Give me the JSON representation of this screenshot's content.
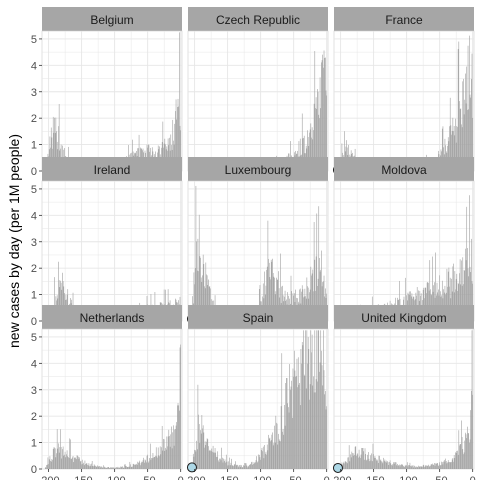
{
  "chart_data": {
    "type": "bar",
    "ylabel": "new cases by day (per 1M people)",
    "xlabel": "",
    "xlim": [
      -210,
      2
    ],
    "ylim": [
      0,
      5.3
    ],
    "x_ticks": [
      -200,
      -150,
      -100,
      -50,
      0
    ],
    "x_tick_labels": [
      "-200",
      "-150",
      "-100",
      "-50",
      "0"
    ],
    "y_ticks": [
      0,
      1,
      2,
      3,
      4,
      5
    ],
    "y_tick_labels": [
      "0",
      "1",
      "2",
      "3",
      "4",
      "5"
    ],
    "grid": true,
    "colors": {
      "bar": "#a3a3a3",
      "strip": "#a6a6a6",
      "marker_fill": "#add8e6",
      "marker_stroke": "#1a1a1a",
      "grid": "#e6e6e6"
    },
    "panels": [
      {
        "title": "Belgium",
        "shape": [
          [
            -205,
            0.1
          ],
          [
            -200,
            0.6
          ],
          [
            -196,
            1.4
          ],
          [
            -190,
            1.6
          ],
          [
            -186,
            1.3
          ],
          [
            -180,
            0.9
          ],
          [
            -172,
            0.45
          ],
          [
            -160,
            0.3
          ],
          [
            -145,
            0.2
          ],
          [
            -130,
            0.15
          ],
          [
            -115,
            0.12
          ],
          [
            -100,
            0.12
          ],
          [
            -90,
            0.25
          ],
          [
            -80,
            0.45
          ],
          [
            -70,
            0.6
          ],
          [
            -60,
            0.65
          ],
          [
            -50,
            0.75
          ],
          [
            -40,
            0.7
          ],
          [
            -30,
            0.8
          ],
          [
            -20,
            1.0
          ],
          [
            -12,
            1.5
          ],
          [
            -6,
            2.2
          ],
          [
            -2,
            2.7
          ],
          [
            0,
            2.8
          ]
        ],
        "marker": null
      },
      {
        "title": "Czech Republic",
        "shape": [
          [
            -195,
            0.05
          ],
          [
            -180,
            0.18
          ],
          [
            -160,
            0.22
          ],
          [
            -140,
            0.2
          ],
          [
            -120,
            0.2
          ],
          [
            -100,
            0.2
          ],
          [
            -85,
            0.22
          ],
          [
            -70,
            0.3
          ],
          [
            -60,
            0.45
          ],
          [
            -50,
            0.6
          ],
          [
            -40,
            0.9
          ],
          [
            -30,
            1.3
          ],
          [
            -22,
            1.8
          ],
          [
            -15,
            2.4
          ],
          [
            -8,
            3.1
          ],
          [
            -3,
            3.7
          ],
          [
            0,
            4.0
          ]
        ],
        "marker": null
      },
      {
        "title": "France",
        "shape": [
          [
            -205,
            0.0
          ],
          [
            -198,
            0.5
          ],
          [
            -190,
            0.9
          ],
          [
            -185,
            0.6
          ],
          [
            -178,
            0.4
          ],
          [
            -165,
            0.25
          ],
          [
            -150,
            0.2
          ],
          [
            -130,
            0.15
          ],
          [
            -110,
            0.15
          ],
          [
            -90,
            0.2
          ],
          [
            -75,
            0.25
          ],
          [
            -62,
            0.35
          ],
          [
            -50,
            0.6
          ],
          [
            -40,
            1.0
          ],
          [
            -30,
            1.5
          ],
          [
            -22,
            2.2
          ],
          [
            -15,
            2.8
          ],
          [
            -9,
            3.5
          ],
          [
            -5,
            4.0
          ],
          [
            -1,
            3.8
          ],
          [
            0,
            3.5
          ]
        ],
        "marker": {
          "x": -204,
          "y": 0.04
        }
      },
      {
        "title": "Ireland",
        "shape": [
          [
            -200,
            0.05
          ],
          [
            -195,
            0.3
          ],
          [
            -190,
            0.9
          ],
          [
            -185,
            1.7
          ],
          [
            -180,
            1.6
          ],
          [
            -174,
            1.1
          ],
          [
            -168,
            0.7
          ],
          [
            -160,
            0.4
          ],
          [
            -150,
            0.2
          ],
          [
            -135,
            0.08
          ],
          [
            -115,
            0.05
          ],
          [
            -95,
            0.05
          ],
          [
            -80,
            0.1
          ],
          [
            -70,
            0.2
          ],
          [
            -60,
            0.35
          ],
          [
            -50,
            0.45
          ],
          [
            -40,
            0.5
          ],
          [
            -30,
            0.55
          ],
          [
            -20,
            0.55
          ],
          [
            -10,
            0.6
          ],
          [
            -3,
            0.7
          ],
          [
            0,
            0.75
          ]
        ],
        "marker": null
      },
      {
        "title": "Luxembourg",
        "shape": [
          [
            -205,
            0.3
          ],
          [
            -200,
            1.6
          ],
          [
            -196,
            3.2
          ],
          [
            -193,
            3.3
          ],
          [
            -188,
            2.5
          ],
          [
            -182,
            1.5
          ],
          [
            -175,
            0.8
          ],
          [
            -168,
            0.4
          ],
          [
            -160,
            0.2
          ],
          [
            -145,
            0.08
          ],
          [
            -125,
            0.05
          ],
          [
            -112,
            0.1
          ],
          [
            -105,
            0.3
          ],
          [
            -98,
            0.9
          ],
          [
            -92,
            1.6
          ],
          [
            -86,
            1.9
          ],
          [
            -80,
            1.8
          ],
          [
            -72,
            1.3
          ],
          [
            -62,
            0.9
          ],
          [
            -55,
            0.8
          ],
          [
            -45,
            0.9
          ],
          [
            -35,
            1.1
          ],
          [
            -25,
            1.5
          ],
          [
            -16,
            1.9
          ],
          [
            -10,
            2.1
          ],
          [
            -5,
            1.7
          ],
          [
            0,
            1.4
          ]
        ],
        "marker": {
          "x": -204,
          "y": 0.08
        }
      },
      {
        "title": "Moldova",
        "shape": [
          [
            -185,
            0.05
          ],
          [
            -178,
            0.2
          ],
          [
            -165,
            0.35
          ],
          [
            -150,
            0.45
          ],
          [
            -135,
            0.55
          ],
          [
            -120,
            0.65
          ],
          [
            -105,
            0.75
          ],
          [
            -90,
            0.9
          ],
          [
            -75,
            1.0
          ],
          [
            -60,
            1.15
          ],
          [
            -45,
            1.35
          ],
          [
            -30,
            1.6
          ],
          [
            -18,
            1.85
          ],
          [
            -8,
            2.1
          ],
          [
            -3,
            2.3
          ],
          [
            0,
            2.35
          ]
        ],
        "marker": null
      },
      {
        "title": "Netherlands",
        "shape": [
          [
            -205,
            0.05
          ],
          [
            -200,
            0.25
          ],
          [
            -195,
            0.55
          ],
          [
            -188,
            0.7
          ],
          [
            -180,
            0.7
          ],
          [
            -172,
            0.6
          ],
          [
            -163,
            0.45
          ],
          [
            -150,
            0.3
          ],
          [
            -135,
            0.15
          ],
          [
            -120,
            0.07
          ],
          [
            -100,
            0.05
          ],
          [
            -85,
            0.08
          ],
          [
            -72,
            0.15
          ],
          [
            -60,
            0.25
          ],
          [
            -50,
            0.4
          ],
          [
            -40,
            0.55
          ],
          [
            -30,
            0.7
          ],
          [
            -22,
            0.95
          ],
          [
            -15,
            1.3
          ],
          [
            -8,
            1.7
          ],
          [
            -3,
            2.1
          ],
          [
            0,
            2.2
          ]
        ],
        "marker": null
      },
      {
        "title": "Spain",
        "shape": [
          [
            -205,
            0.0
          ],
          [
            -200,
            0.7
          ],
          [
            -195,
            1.5
          ],
          [
            -190,
            1.6
          ],
          [
            -184,
            1.2
          ],
          [
            -178,
            0.9
          ],
          [
            -170,
            0.6
          ],
          [
            -160,
            0.4
          ],
          [
            -150,
            0.22
          ],
          [
            -135,
            0.12
          ],
          [
            -120,
            0.1
          ],
          [
            -108,
            0.3
          ],
          [
            -98,
            0.6
          ],
          [
            -88,
            0.95
          ],
          [
            -78,
            1.4
          ],
          [
            -70,
            1.9
          ],
          [
            -62,
            2.4
          ],
          [
            -55,
            3.0
          ],
          [
            -48,
            3.5
          ],
          [
            -40,
            3.9
          ],
          [
            -32,
            4.4
          ],
          [
            -24,
            4.8
          ],
          [
            -16,
            5.0
          ],
          [
            -8,
            4.8
          ],
          [
            -3,
            4.2
          ],
          [
            0,
            3.6
          ]
        ],
        "marker": {
          "x": -204,
          "y": 0.06
        }
      },
      {
        "title": "United Kingdom",
        "shape": [
          [
            -205,
            0.0
          ],
          [
            -200,
            0.15
          ],
          [
            -190,
            0.35
          ],
          [
            -182,
            0.55
          ],
          [
            -175,
            0.65
          ],
          [
            -168,
            0.62
          ],
          [
            -160,
            0.55
          ],
          [
            -150,
            0.45
          ],
          [
            -138,
            0.35
          ],
          [
            -125,
            0.25
          ],
          [
            -112,
            0.17
          ],
          [
            -100,
            0.12
          ],
          [
            -88,
            0.1
          ],
          [
            -75,
            0.12
          ],
          [
            -62,
            0.15
          ],
          [
            -50,
            0.2
          ],
          [
            -40,
            0.3
          ],
          [
            -30,
            0.45
          ],
          [
            -22,
            0.65
          ],
          [
            -15,
            0.95
          ],
          [
            -8,
            1.3
          ],
          [
            -3,
            1.9
          ],
          [
            -1,
            2.9
          ],
          [
            0,
            3.3
          ]
        ],
        "marker": {
          "x": -204,
          "y": 0.04
        }
      }
    ]
  }
}
